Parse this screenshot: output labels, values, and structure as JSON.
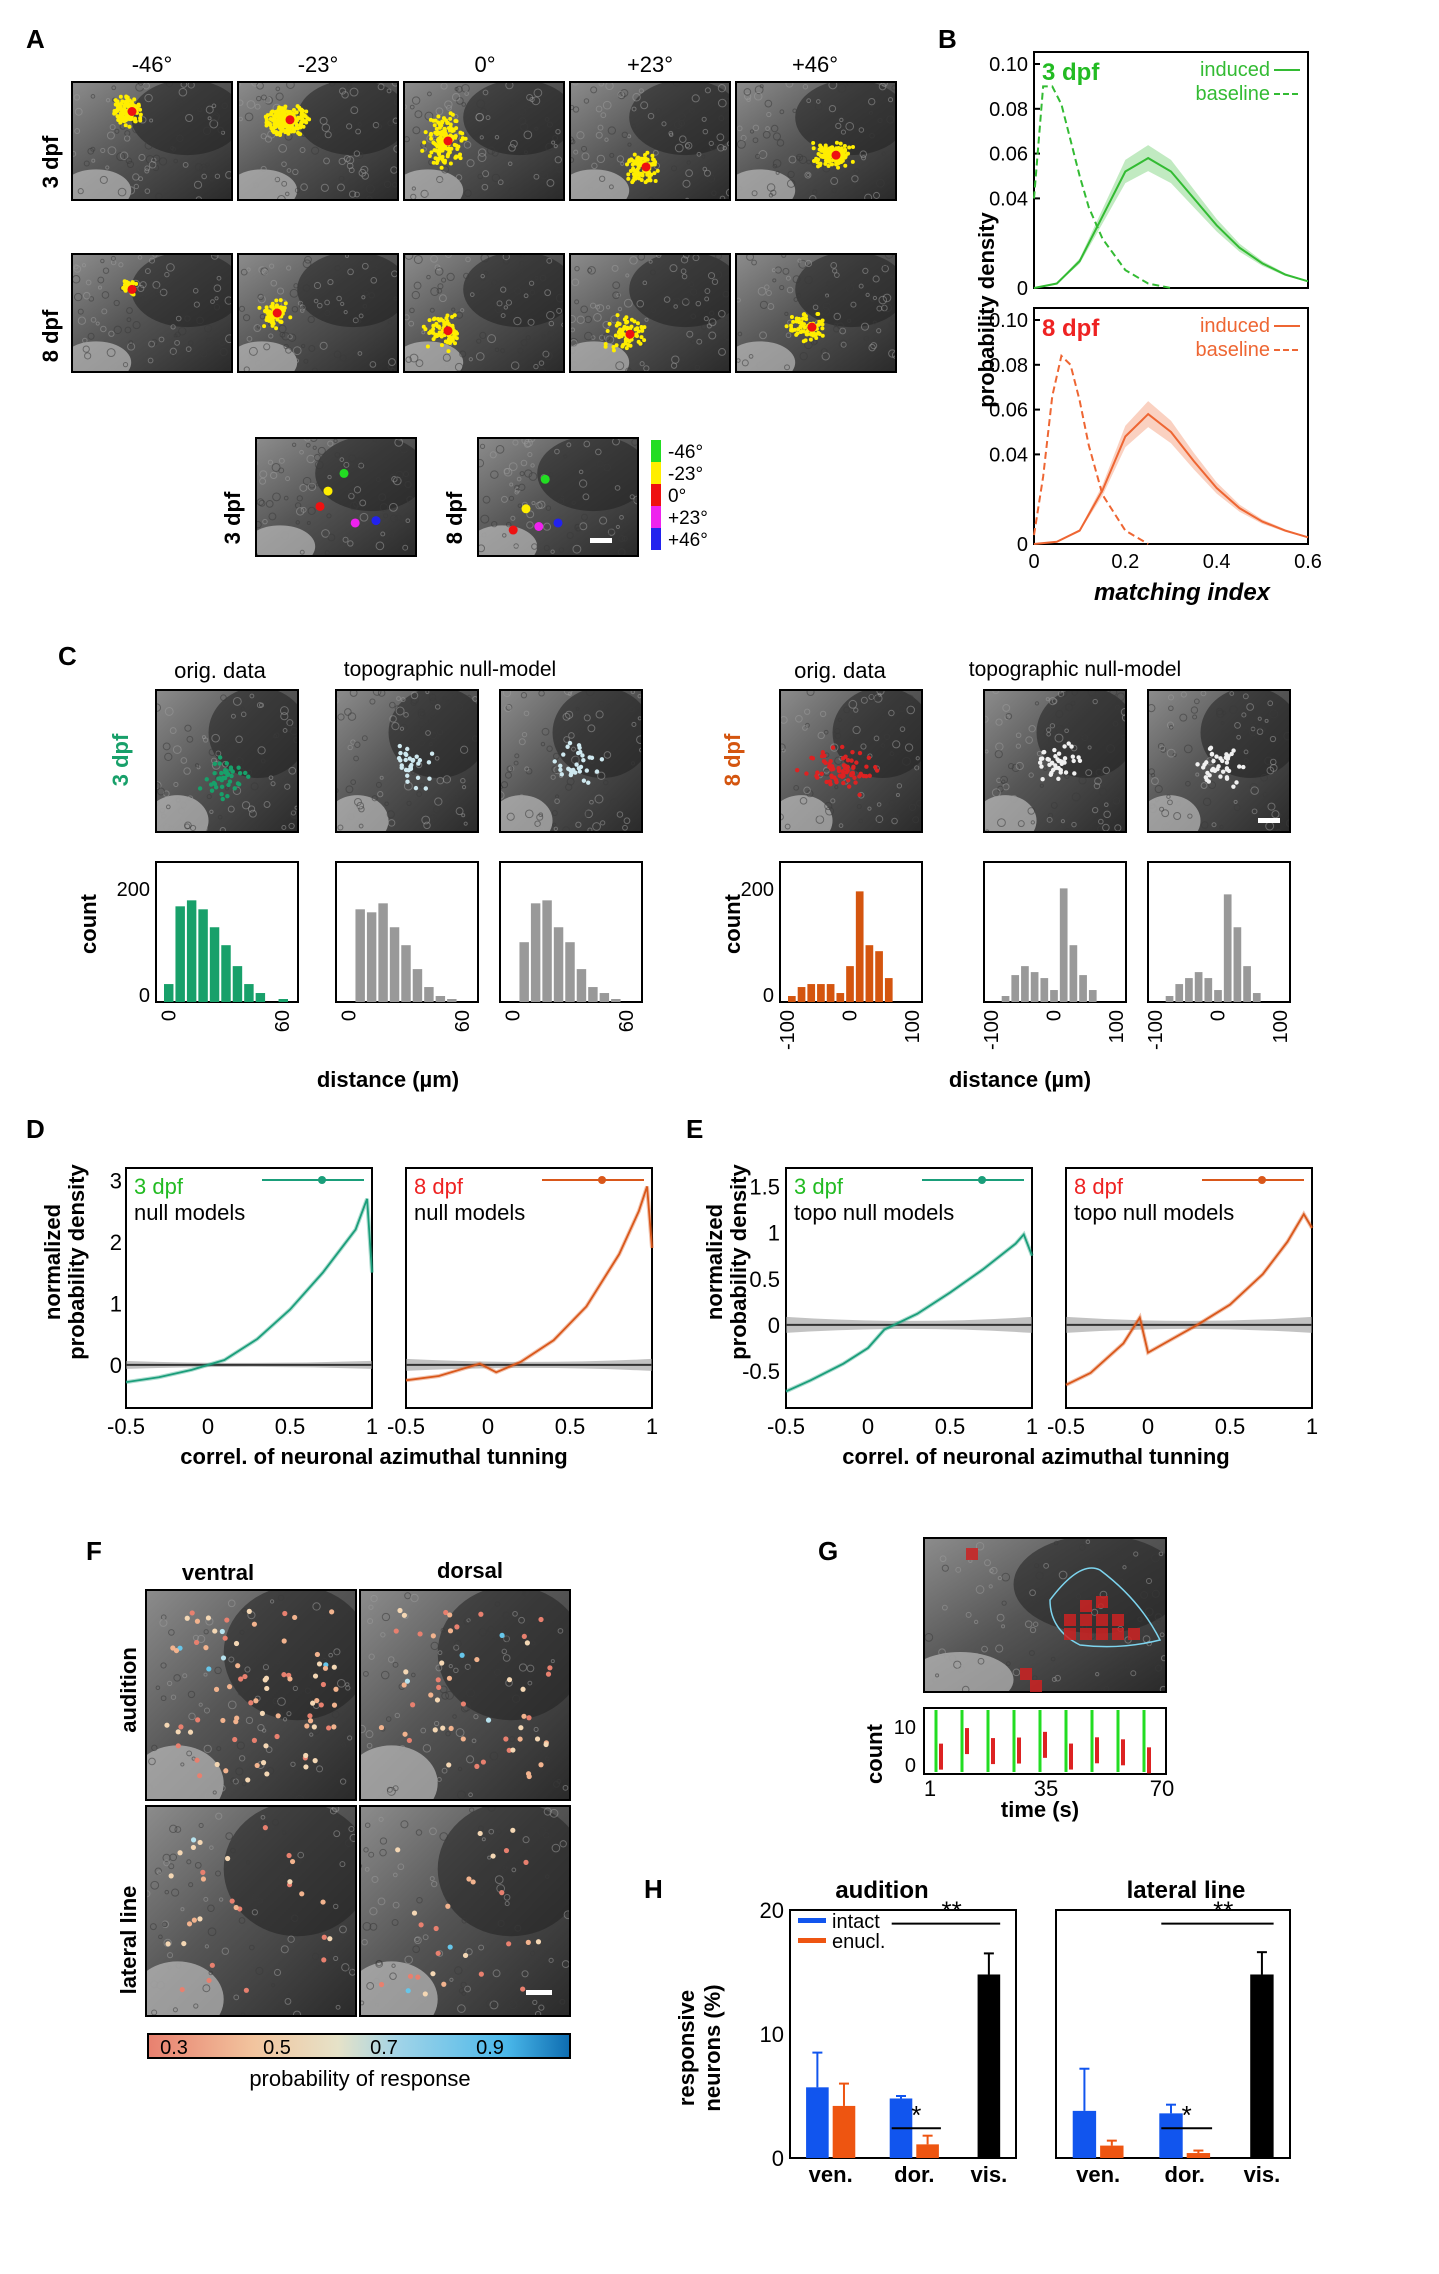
{
  "panel_letters": {
    "A": "A",
    "B": "B",
    "C": "C",
    "D": "D",
    "E": "E",
    "F": "F",
    "G": "G",
    "H": "H"
  },
  "A": {
    "angles": [
      "-46°",
      "-23°",
      "0°",
      "+23°",
      "+46°"
    ],
    "rows": [
      "3 dpf",
      "8 dpf"
    ],
    "summary_rows": [
      "3 dpf",
      "8 dpf"
    ],
    "legend_labels": [
      "-46°",
      "-23°",
      "0°",
      "+23°",
      "+46°"
    ],
    "legend_colors": [
      "#22dd22",
      "#ffee00",
      "#ee1111",
      "#ee22ee",
      "#2222ee"
    ],
    "dot_color": "#ffee00",
    "center_color": "#ee1111"
  },
  "B": {
    "ylabel": "probability density",
    "xlabel": "matching index",
    "y_ticks": [
      "0.10",
      "0.08",
      "0.06",
      "0.04",
      "0"
    ],
    "x_ticks": [
      "0",
      "0.2",
      "0.4",
      "0.6"
    ],
    "top": {
      "age": "3 dpf",
      "induced": "induced",
      "baseline": "baseline",
      "color": "#33bb33"
    },
    "bottom": {
      "age": "8 dpf",
      "induced": "induced",
      "baseline": "baseline",
      "color": "#ee6633"
    }
  },
  "C": {
    "left_age": "3 dpf",
    "right_age": "8 dpf",
    "left_color": "#18a06a",
    "right_color": "#d4550f",
    "orig": "orig. data",
    "null": "topographic null-model",
    "ylabel": "count",
    "xlabel": "distance (µm)",
    "y_ticks": [
      "200",
      "0"
    ],
    "x_ticks_left": [
      "0",
      "60"
    ],
    "x_ticks_right": [
      "-100",
      "0",
      "100"
    ]
  },
  "D": {
    "ylabel_1": "normalized",
    "ylabel_2": "probability density",
    "xlabel": "correl. of neuronal azimuthal tunning",
    "y_ticks": [
      "3",
      "2",
      "1",
      "0"
    ],
    "x_ticks": [
      "-0.5",
      "0",
      "0.5",
      "1"
    ],
    "left": {
      "age": "3 dpf",
      "null": "null models"
    },
    "right": {
      "age": "8 dpf",
      "null": "null models"
    }
  },
  "E": {
    "ylabel_1": "normalized",
    "ylabel_2": "probability density",
    "xlabel": "correl. of neuronal azimuthal tunning",
    "y_ticks": [
      "1.5",
      "1",
      "0.5",
      "0",
      "-0.5"
    ],
    "x_ticks": [
      "-0.5",
      "0",
      "0.5",
      "1"
    ],
    "left": {
      "age": "3 dpf",
      "null": "topo null models"
    },
    "right": {
      "age": "8 dpf",
      "null": "topo null models"
    }
  },
  "F": {
    "cols": [
      "ventral",
      "dorsal"
    ],
    "rows": [
      "audition",
      "lateral line"
    ],
    "colorbar_ticks": [
      "0.3",
      "0.5",
      "0.7",
      "0.9"
    ],
    "colorbar_label": "probability of response"
  },
  "G": {
    "ylabel": "count",
    "xlabel": "time (s)",
    "y_ticks": [
      "10",
      "0"
    ],
    "x_ticks": [
      "1",
      "35",
      "70"
    ]
  },
  "H": {
    "ylabel_1": "responsive",
    "ylabel_2": "neurons (%)",
    "legend": [
      "intact",
      "enucl."
    ],
    "colors": {
      "intact": "#1155ee",
      "enucl": "#ee5511",
      "vis": "#000000"
    },
    "y_ticks": [
      "20",
      "10",
      "0"
    ],
    "x_ticks": [
      "ven.",
      "dor.",
      "vis."
    ],
    "sig1": "*",
    "sig2": "**"
  },
  "chart_data": [
    {
      "type": "line",
      "title": "3 dpf",
      "xlabel": "matching index",
      "ylabel": "probability density",
      "xlim": [
        0,
        0.6
      ],
      "ylim": [
        0,
        0.1
      ],
      "series": [
        {
          "name": "induced",
          "x": [
            0,
            0.05,
            0.1,
            0.15,
            0.2,
            0.25,
            0.3,
            0.35,
            0.4,
            0.45,
            0.5,
            0.55,
            0.6
          ],
          "y": [
            0,
            0.002,
            0.012,
            0.032,
            0.052,
            0.058,
            0.052,
            0.04,
            0.028,
            0.018,
            0.011,
            0.006,
            0.003
          ]
        },
        {
          "name": "baseline",
          "x": [
            0,
            0.02,
            0.04,
            0.06,
            0.08,
            0.1,
            0.12,
            0.15,
            0.2,
            0.25,
            0.3
          ],
          "y": [
            0.04,
            0.09,
            0.09,
            0.082,
            0.066,
            0.05,
            0.036,
            0.022,
            0.008,
            0.002,
            0
          ]
        }
      ]
    },
    {
      "type": "line",
      "title": "8 dpf",
      "xlabel": "matching index",
      "ylabel": "probability density",
      "xlim": [
        0,
        0.6
      ],
      "ylim": [
        0,
        0.1
      ],
      "series": [
        {
          "name": "induced",
          "x": [
            0,
            0.05,
            0.1,
            0.15,
            0.2,
            0.25,
            0.3,
            0.35,
            0.4,
            0.45,
            0.5,
            0.55,
            0.6
          ],
          "y": [
            0,
            0.001,
            0.006,
            0.024,
            0.048,
            0.058,
            0.05,
            0.037,
            0.025,
            0.016,
            0.01,
            0.006,
            0.003
          ]
        },
        {
          "name": "baseline",
          "x": [
            0,
            0.02,
            0.04,
            0.06,
            0.08,
            0.1,
            0.12,
            0.15,
            0.2,
            0.25
          ],
          "y": [
            0.004,
            0.03,
            0.066,
            0.084,
            0.08,
            0.064,
            0.044,
            0.022,
            0.006,
            0
          ]
        }
      ]
    },
    {
      "type": "bar",
      "title": "audition",
      "ylabel": "responsive neurons (%)",
      "categories": [
        "ven.",
        "dor.",
        "vis."
      ],
      "ylim": [
        0,
        20
      ],
      "series": [
        {
          "name": "intact",
          "values": [
            5.7,
            4.8,
            null
          ]
        },
        {
          "name": "enucl.",
          "values": [
            4.2,
            1.1,
            null
          ]
        },
        {
          "name": "",
          "values": [
            null,
            null,
            14.8
          ]
        }
      ],
      "errors": {
        "intact": [
          2.8,
          0.2,
          null
        ],
        "enucl.": [
          1.8,
          0.7,
          null
        ],
        "vis": [
          null,
          null,
          1.7
        ]
      }
    },
    {
      "type": "bar",
      "title": "lateral line",
      "ylabel": "responsive neurons (%)",
      "categories": [
        "ven.",
        "dor.",
        "vis."
      ],
      "ylim": [
        0,
        20
      ],
      "series": [
        {
          "name": "intact",
          "values": [
            3.8,
            3.6,
            null
          ]
        },
        {
          "name": "enucl.",
          "values": [
            1.0,
            0.4,
            null
          ]
        },
        {
          "name": "",
          "values": [
            null,
            null,
            14.8
          ]
        }
      ],
      "errors": {
        "intact": [
          3.4,
          0.7,
          null
        ],
        "enucl.": [
          0.4,
          0.2,
          null
        ],
        "vis": [
          null,
          null,
          1.8
        ]
      }
    },
    {
      "type": "bar",
      "title": "3 dpf",
      "xlabel": "distance (µm)",
      "ylabel": "count",
      "categories": [
        0,
        6,
        12,
        18,
        24,
        30,
        36,
        42,
        48,
        54,
        60
      ],
      "values": [
        30,
        160,
        170,
        155,
        125,
        95,
        60,
        30,
        15,
        0,
        5
      ]
    },
    {
      "type": "bar",
      "title": "8 dpf",
      "xlabel": "distance (µm)",
      "ylabel": "count",
      "categories": [
        -90,
        -75,
        -60,
        -45,
        -30,
        -15,
        0,
        15,
        30,
        45,
        60,
        75,
        90
      ],
      "values": [
        10,
        25,
        30,
        30,
        30,
        15,
        60,
        185,
        95,
        85,
        40,
        0,
        0
      ]
    }
  ]
}
